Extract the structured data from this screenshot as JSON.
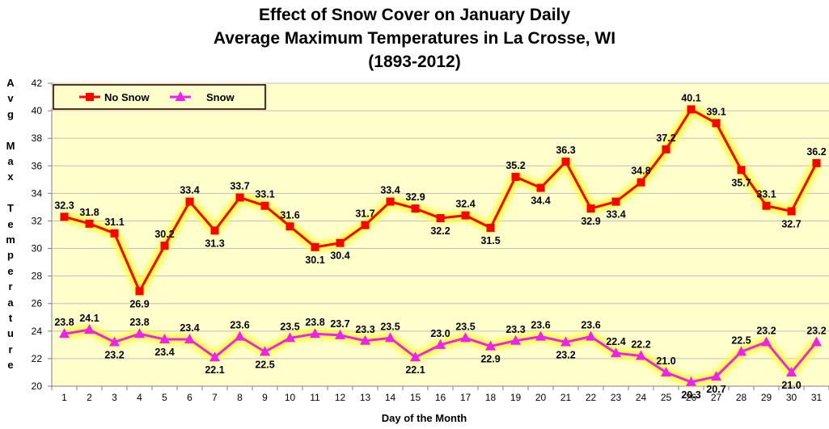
{
  "chart_data": {
    "type": "line",
    "title": [
      "Effect of Snow Cover on January Daily",
      "Average Maximum Temperatures in La Crosse, WI",
      "(1893-2012)"
    ],
    "xlabel": "Day of the Month",
    "ylabel": "Avg Max Temperature",
    "ylim": [
      20,
      42
    ],
    "ytick_step": 2,
    "grid": true,
    "legend_position": "top-left",
    "categories": [
      "1",
      "2",
      "3",
      "4",
      "5",
      "6",
      "7",
      "8",
      "9",
      "10",
      "11",
      "12",
      "13",
      "14",
      "15",
      "16",
      "17",
      "18",
      "19",
      "20",
      "21",
      "22",
      "23",
      "24",
      "25",
      "26",
      "27",
      "28",
      "29",
      "30",
      "31"
    ],
    "series": [
      {
        "name": "No Snow",
        "color": "#ff0000",
        "marker": "square",
        "values": [
          32.3,
          31.8,
          31.1,
          26.9,
          30.2,
          33.4,
          31.3,
          33.7,
          33.1,
          31.6,
          30.1,
          30.4,
          31.7,
          33.4,
          32.9,
          32.2,
          32.4,
          31.5,
          35.2,
          34.4,
          36.3,
          32.9,
          33.4,
          34.8,
          37.2,
          40.1,
          39.1,
          35.7,
          33.1,
          32.7,
          36.2
        ],
        "labels": [
          "32.3",
          "31.8",
          "31.1",
          "26.9",
          "30.2",
          "33.4",
          "31.3",
          "33.7",
          "33.1",
          "31.6",
          "30.1",
          "30.4",
          "31.7",
          "33.4",
          "32.9",
          "32.2",
          "32.4",
          "31.5",
          "35.2",
          "34.4",
          "36.3",
          "32.9",
          "33.4",
          "34.8",
          "37.2",
          "40.1",
          "39.1",
          "35.7",
          "33.1",
          "32.7",
          "36.2"
        ],
        "label_side": [
          "a",
          "a",
          "a",
          "b",
          "a",
          "a",
          "b",
          "a",
          "a",
          "a",
          "b",
          "b",
          "a",
          "a",
          "a",
          "b",
          "a",
          "b",
          "a",
          "b",
          "a",
          "b",
          "b",
          "a",
          "a",
          "a",
          "a",
          "b",
          "a",
          "b",
          "a"
        ]
      },
      {
        "name": "Snow",
        "color": "#ee22ee",
        "marker": "triangle",
        "values": [
          23.8,
          24.1,
          23.2,
          23.8,
          23.4,
          23.4,
          22.1,
          23.6,
          22.5,
          23.5,
          23.8,
          23.7,
          23.3,
          23.5,
          22.1,
          23.0,
          23.5,
          22.9,
          23.3,
          23.6,
          23.2,
          23.6,
          22.4,
          22.2,
          21.0,
          20.3,
          20.7,
          22.5,
          23.2,
          21.0,
          23.2
        ],
        "labels": [
          "23.8",
          "24.1",
          "23.2",
          "23.8",
          "23.4",
          "23.4",
          "22.1",
          "23.6",
          "22.5",
          "23.5",
          "23.8",
          "23.7",
          "23.3",
          "23.5",
          "22.1",
          "23.0",
          "23.5",
          "22.9",
          "23.3",
          "23.6",
          "23.2",
          "23.6",
          "22.4",
          "22.2",
          "21.0",
          "20.3",
          "20.7",
          "22.5",
          "23.2",
          "21.0",
          "23.2"
        ],
        "label_side": [
          "a",
          "a",
          "b",
          "a",
          "b",
          "a",
          "b",
          "a",
          "b",
          "a",
          "a",
          "a",
          "a",
          "a",
          "b",
          "a",
          "a",
          "b",
          "a",
          "a",
          "b",
          "a",
          "a",
          "a",
          "a",
          "b",
          "b",
          "a",
          "a",
          "b",
          "a"
        ]
      }
    ]
  },
  "colors": {
    "plot_bg": "#ffffcc",
    "grid": "#bfbfbf",
    "glow": "#ffff33"
  }
}
